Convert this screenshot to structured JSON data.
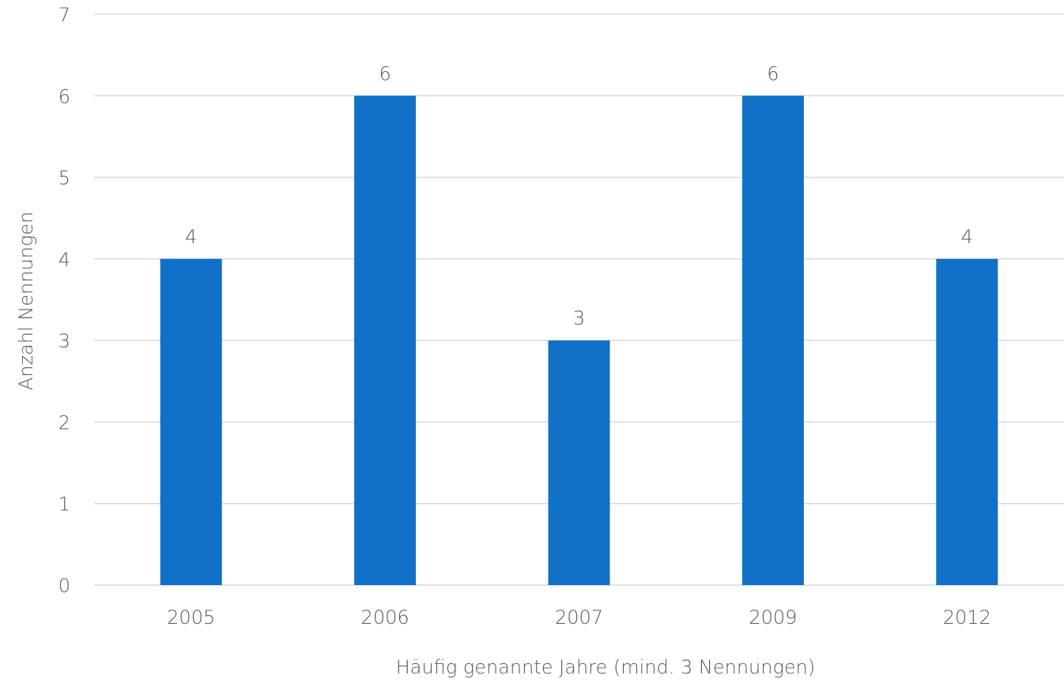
{
  "chart_data": {
    "type": "bar",
    "title": "",
    "xlabel": "Häufig genannte Jahre (mind. 3 Nennungen)",
    "ylabel": "Anzahl Nennungen",
    "categories": [
      "2005",
      "2006",
      "2007",
      "2009",
      "2012"
    ],
    "values": [
      4,
      6,
      3,
      6,
      4
    ],
    "ylim": [
      0,
      7
    ],
    "yticks": [
      0,
      1,
      2,
      3,
      4,
      5,
      6,
      7
    ],
    "grid": true,
    "legend": "none",
    "data_labels": true,
    "bar_color": "#1170c7"
  }
}
